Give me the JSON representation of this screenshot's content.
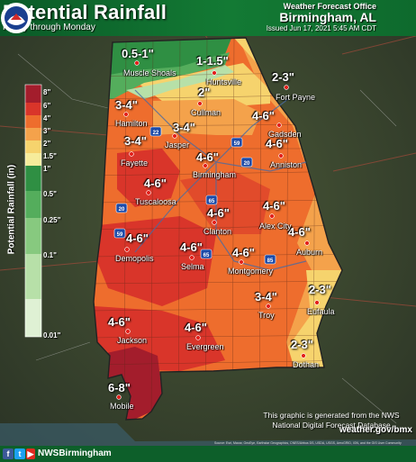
{
  "header": {
    "title": "Potential Rainfall",
    "subtitle": "Friday through Monday",
    "office_line1": "Weather Forecast Office",
    "office_line2": "Birmingham, AL",
    "issued": "Issued Jun 17, 2021 5:45 AM CDT",
    "logo_icon": "nws-logo"
  },
  "legend": {
    "title": "Potential Rainfall (in)",
    "levels": [
      "8\"",
      "6\"",
      "4\"",
      "3\"",
      "2\"",
      "1.5\"",
      "1\"",
      "0.5\"",
      "0.25\"",
      "0.1\"",
      "0.01\""
    ],
    "colors": [
      "#a31d2c",
      "#d9352a",
      "#ee6d2d",
      "#f4a24b",
      "#f6d36d",
      "#f6ec9b",
      "#2f8f43",
      "#54ad5c",
      "#87c97f",
      "#b7e0a8",
      "#dff1d4"
    ]
  },
  "amounts": [
    "0.5-1\"",
    "1-1.5\"",
    "2\"",
    "2-3\"",
    "3-4\"",
    "3-4\"",
    "4-6\"",
    "3-4\"",
    "4-6\"",
    "4-6\"",
    "4-6\"",
    "4-6\"",
    "4-6\"",
    "4-6\"",
    "4-6\"",
    "4-6\"",
    "4-6\"",
    "3-4\"",
    "2-3\"",
    "4-6\"",
    "4-6\"",
    "2-3\"",
    "6-8\""
  ],
  "cities": [
    "Muscle Shoals",
    "Huntsville",
    "Fort Payne",
    "Cullman",
    "Hamilton",
    "Gadsden",
    "Jasper",
    "Fayette",
    "Anniston",
    "Birmingham",
    "Tuscaloosa",
    "Alex City",
    "Clanton",
    "Demopolis",
    "Auburn",
    "Selma",
    "Montgomery",
    "Troy",
    "Eufaula",
    "Jackson",
    "Evergreen",
    "Dothan",
    "Mobile"
  ],
  "highways": [
    "22",
    "59",
    "20",
    "65",
    "20",
    "59",
    "85",
    "65"
  ],
  "credit": "This graphic is generated from the NWS National Digital Forecast Database",
  "source": "Source: Esri, Maxar, GeoEye, Earthstar Geographics, CNES/Airbus DS, USDA, USGS, AeroGRID, IGN, and the GIS User Community",
  "footer": {
    "handle": "NWSBirmingham",
    "website": "weather.gov/bmx",
    "social_icons": [
      "facebook-icon",
      "twitter-icon",
      "youtube-icon"
    ]
  }
}
